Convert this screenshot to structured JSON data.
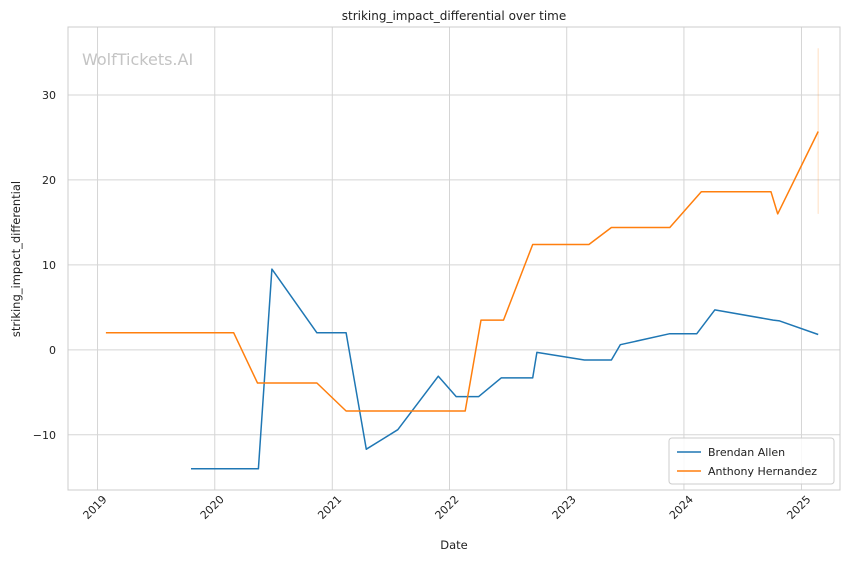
{
  "watermark": "WolfTickets.AI",
  "chart_data": {
    "type": "line",
    "title": "striking_impact_differential over time",
    "xlabel": "Date",
    "ylabel": "striking_impact_differential",
    "xlim": [
      "2018-10-01",
      "2025-05-01"
    ],
    "ylim": [
      -16.5,
      38
    ],
    "x_ticks": [
      "2019-01-01",
      "2020-01-01",
      "2021-01-01",
      "2022-01-01",
      "2023-01-01",
      "2024-01-01",
      "2025-01-01"
    ],
    "x_tick_labels": [
      "2019",
      "2020",
      "2021",
      "2022",
      "2023",
      "2024",
      "2025"
    ],
    "y_ticks": [
      -10,
      0,
      10,
      20,
      30
    ],
    "y_tick_labels": [
      "−10",
      "0",
      "10",
      "20",
      "30"
    ],
    "grid": true,
    "legend_position": "lower-right",
    "series": [
      {
        "name": "Brendan Allen",
        "color": "#1f77b4",
        "points": [
          [
            "2019-10-19",
            -14.0
          ],
          [
            "2020-05-16",
            -14.0
          ],
          [
            "2020-06-27",
            9.5
          ],
          [
            "2020-11-14",
            2.0
          ],
          [
            "2021-02-13",
            2.0
          ],
          [
            "2021-04-17",
            -11.7
          ],
          [
            "2021-07-24",
            -9.4
          ],
          [
            "2021-11-27",
            -3.1
          ],
          [
            "2022-01-22",
            -5.5
          ],
          [
            "2022-04-02",
            -5.5
          ],
          [
            "2022-06-11",
            -3.3
          ],
          [
            "2022-09-17",
            -3.3
          ],
          [
            "2022-09-30",
            -0.3
          ],
          [
            "2023-02-25",
            -1.2
          ],
          [
            "2023-05-20",
            -1.2
          ],
          [
            "2023-06-17",
            0.6
          ],
          [
            "2023-11-18",
            1.9
          ],
          [
            "2024-02-10",
            1.9
          ],
          [
            "2024-04-06",
            4.7
          ],
          [
            "2024-10-05",
            3.5
          ],
          [
            "2024-10-25",
            3.4
          ],
          [
            "2025-02-22",
            1.8
          ]
        ]
      },
      {
        "name": "Anthony Hernandez",
        "color": "#ff7f0e",
        "points": [
          [
            "2019-01-27",
            2.0
          ],
          [
            "2020-02-29",
            2.0
          ],
          [
            "2020-05-13",
            -3.9
          ],
          [
            "2020-11-14",
            -3.9
          ],
          [
            "2021-02-13",
            -7.2
          ],
          [
            "2022-02-19",
            -7.2
          ],
          [
            "2022-04-09",
            3.5
          ],
          [
            "2022-06-18",
            3.5
          ],
          [
            "2022-09-17",
            12.4
          ],
          [
            "2023-03-11",
            12.4
          ],
          [
            "2023-05-20",
            14.4
          ],
          [
            "2023-11-18",
            14.4
          ],
          [
            "2024-02-24",
            18.6
          ],
          [
            "2024-09-28",
            18.6
          ],
          [
            "2024-10-19",
            16.0
          ],
          [
            "2025-02-22",
            25.7
          ]
        ],
        "error_bar": {
          "x": "2025-02-22",
          "low": 16.0,
          "high": 35.5
        }
      }
    ]
  }
}
